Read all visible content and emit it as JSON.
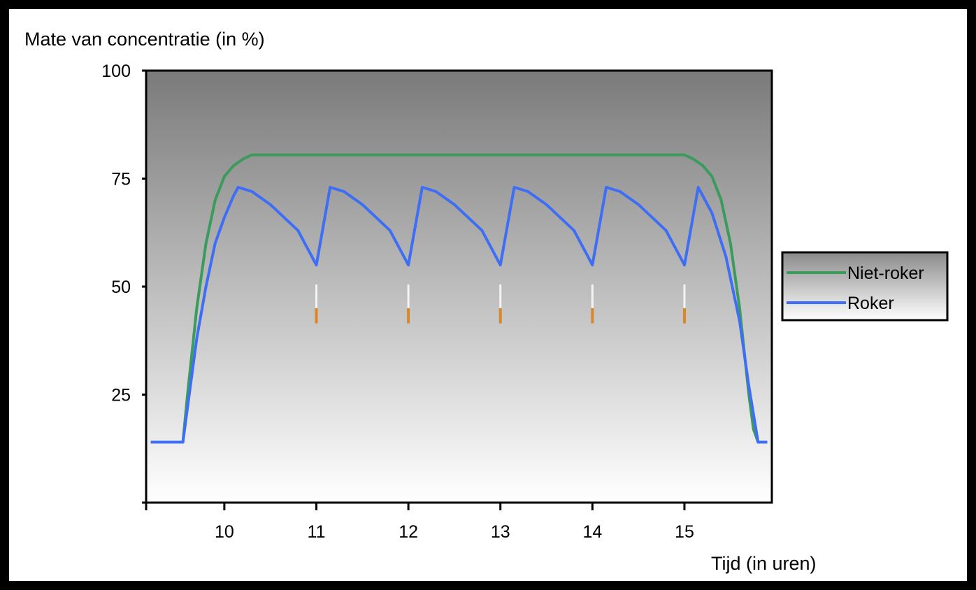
{
  "chart_data": {
    "type": "line",
    "title": "",
    "ylabel": "Mate van concentratie (in %)",
    "xlabel": "Tijd (in uren)",
    "xlim": [
      9.15,
      15.95
    ],
    "ylim": [
      0,
      100
    ],
    "x_ticks": [
      10,
      11,
      12,
      13,
      14,
      15
    ],
    "x_tick_labels": [
      "10",
      "11",
      "12",
      "13",
      "14",
      "15"
    ],
    "y_ticks": [
      25,
      50,
      75,
      100
    ],
    "y_tick_labels": [
      "25",
      "50",
      "75",
      "100"
    ],
    "grid": false,
    "legend_position": "right",
    "cigarette_times": [
      11,
      12,
      13,
      14,
      15
    ],
    "colors": {
      "plot_bg_top": "#7a7a7a",
      "plot_bg_bottom": "#ffffff",
      "legend_bg_top": "#8a8a8a",
      "legend_bg_bottom": "#ffffff",
      "cigarette_paper": "#f4f4f4",
      "cigarette_filter": "#d9872a"
    },
    "series": [
      {
        "name": "Niet-roker",
        "color": "#3a9b5c",
        "x": [
          9.2,
          9.55,
          9.6,
          9.7,
          9.8,
          9.9,
          10.0,
          10.1,
          10.2,
          10.3,
          10.35,
          15.0,
          15.1,
          15.2,
          15.3,
          15.4,
          15.5,
          15.6,
          15.7,
          15.75,
          15.8,
          15.9
        ],
        "y": [
          14,
          14,
          25,
          45,
          60,
          70,
          75.5,
          78,
          79.5,
          80.5,
          80.5,
          80.5,
          79.5,
          78,
          75.5,
          70,
          60,
          45,
          25,
          17,
          14,
          14
        ]
      },
      {
        "name": "Roker",
        "color": "#3d6ef5",
        "x": [
          9.2,
          9.55,
          9.6,
          9.7,
          9.8,
          9.9,
          10.0,
          10.1,
          10.15,
          10.3,
          10.5,
          10.8,
          10.95,
          11.0,
          11.15,
          11.3,
          11.5,
          11.8,
          11.95,
          12.0,
          12.15,
          12.3,
          12.5,
          12.8,
          12.95,
          13.0,
          13.15,
          13.3,
          13.5,
          13.8,
          13.95,
          14.0,
          14.15,
          14.3,
          14.5,
          14.8,
          14.95,
          15.0,
          15.15,
          15.3,
          15.45,
          15.6,
          15.7,
          15.8,
          15.9
        ],
        "y": [
          14,
          14,
          22,
          38,
          50,
          60,
          66,
          71,
          73,
          72,
          69,
          63,
          57,
          55,
          73,
          72,
          69,
          63,
          57,
          55,
          73,
          72,
          69,
          63,
          57,
          55,
          73,
          72,
          69,
          63,
          57,
          55,
          73,
          72,
          69,
          63,
          57,
          55,
          73,
          67,
          57,
          42,
          27,
          14,
          14
        ]
      }
    ]
  }
}
